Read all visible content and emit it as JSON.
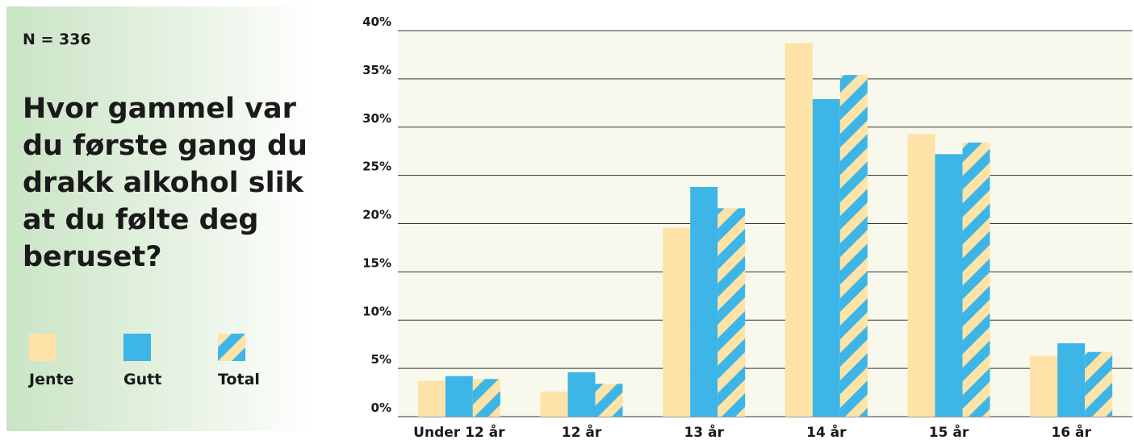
{
  "chart_data": {
    "type": "bar",
    "note": "N = 336",
    "title": "Hvor gammel var du første gang du drakk alkohol slik at du følte deg beruset?",
    "categories": [
      "Under 12 år",
      "12 år",
      "13 år",
      "14 år",
      "15 år",
      "16 år"
    ],
    "series": [
      {
        "name": "Jente",
        "color": "#fde3a7",
        "values": [
          3.7,
          2.6,
          19.6,
          38.7,
          29.3,
          6.3
        ]
      },
      {
        "name": "Gutt",
        "color": "#3db5e6",
        "values": [
          4.2,
          4.6,
          23.8,
          32.9,
          27.2,
          7.6
        ]
      },
      {
        "name": "Total",
        "color": "#3db5e6",
        "hatch_color": "#fde3a7",
        "values": [
          3.9,
          3.4,
          21.6,
          35.4,
          28.4,
          6.7
        ]
      }
    ],
    "ylim": [
      0,
      40
    ],
    "yticks": [
      {
        "value": 0,
        "label": "0%"
      },
      {
        "value": 5,
        "label": "5%"
      },
      {
        "value": 10,
        "label": "10%"
      },
      {
        "value": 15,
        "label": "15%"
      },
      {
        "value": 20,
        "label": "20%"
      },
      {
        "value": 25,
        "label": "25%"
      },
      {
        "value": 30,
        "label": "30%"
      },
      {
        "value": 35,
        "label": "35%"
      },
      {
        "value": 40,
        "label": "40%"
      }
    ],
    "grid": true,
    "background": "#f8f9ec"
  }
}
